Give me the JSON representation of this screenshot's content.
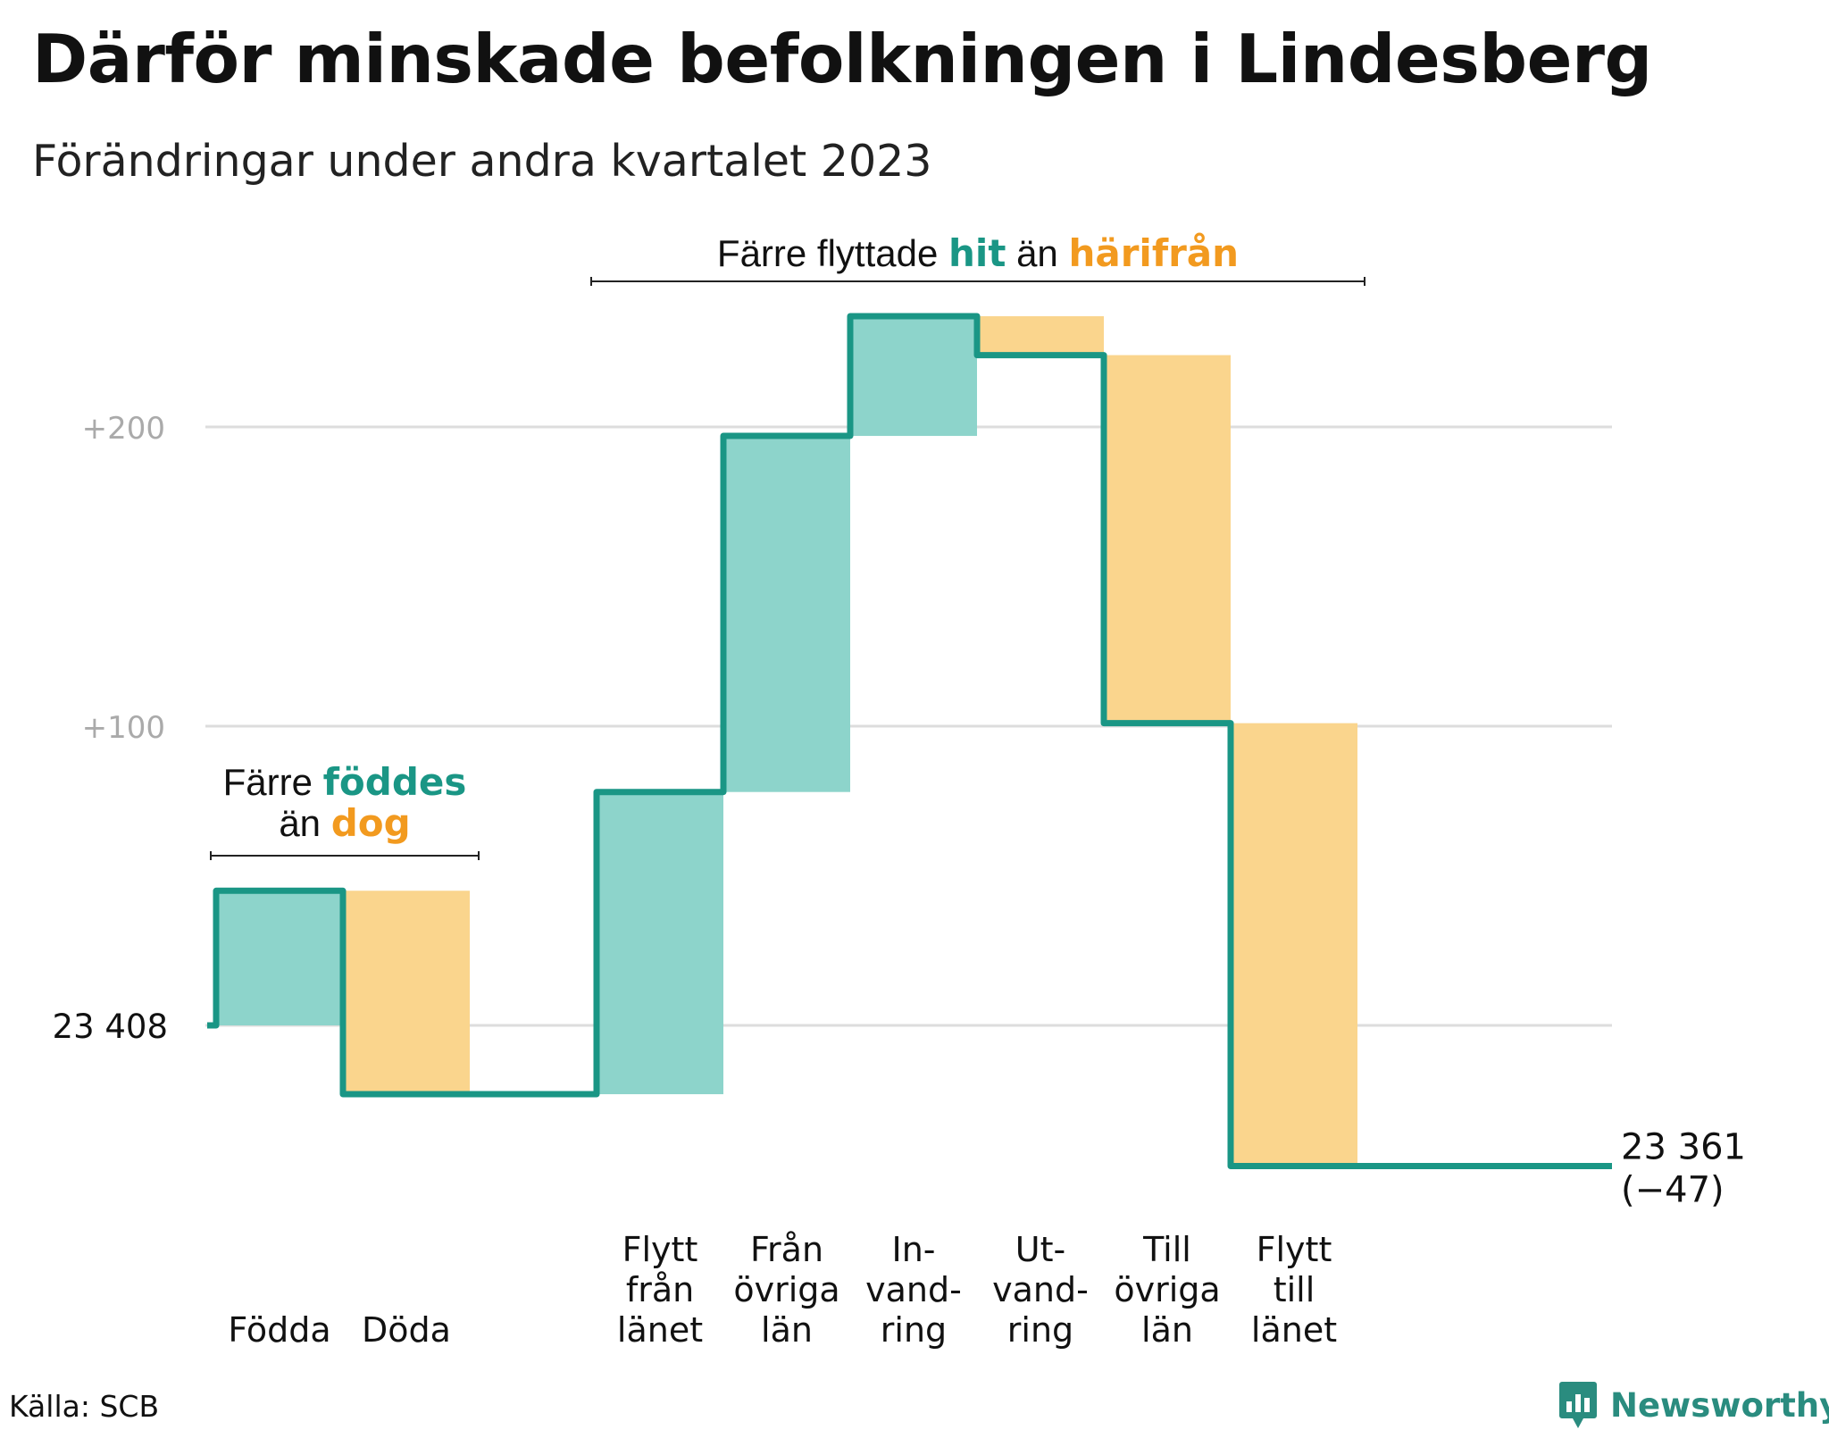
{
  "title": "Därför minskade befolkningen i Lindesberg",
  "subtitle": "Förändringar under andra kvartalet 2023",
  "source": "Källa: SCB",
  "brand": "Newsworthy",
  "colors": {
    "inflow": "#8dd4cb",
    "outflow": "#fad58d",
    "line": "#1a9685",
    "accent_green": "#1a9685",
    "accent_orange": "#f29a1f",
    "grid": "#dddddd",
    "tick_text": "#aaaaaa"
  },
  "annotations": {
    "births": {
      "l1_pre": "Färre",
      "l1_hi": "föddes",
      "l2_pre": "än",
      "l2_hi": "dog"
    },
    "moves": {
      "pre": "Färre flyttade",
      "hi1": "hit",
      "mid": "än",
      "hi2": "härifrån"
    }
  },
  "chart_data": {
    "type": "waterfall",
    "start_value": 23408,
    "start_label": "23  408",
    "end_value": 23361,
    "end_label": "23 361",
    "end_change_label": "(−47)",
    "yticks": [
      {
        "offset": 100,
        "label": "+100"
      },
      {
        "offset": 200,
        "label": "+200"
      }
    ],
    "ylim_offset": [
      -60,
      270
    ],
    "steps": [
      {
        "name": "Födda",
        "lines": [
          "Födda"
        ],
        "change": 45,
        "kind": "in"
      },
      {
        "name": "Döda",
        "lines": [
          "Döda"
        ],
        "change": -68,
        "kind": "out"
      },
      {
        "name": "",
        "lines": [],
        "change": 0,
        "kind": "gap"
      },
      {
        "name": "Flytt från länet",
        "lines": [
          "Flytt",
          "från",
          "länet"
        ],
        "change": 101,
        "kind": "in"
      },
      {
        "name": "Från övriga län",
        "lines": [
          "Från",
          "övriga",
          "län"
        ],
        "change": 119,
        "kind": "in"
      },
      {
        "name": "In-vandring",
        "lines": [
          "In-",
          "vand-",
          "ring"
        ],
        "change": 40,
        "kind": "in"
      },
      {
        "name": "Ut-vandring",
        "lines": [
          "Ut-",
          "vand-",
          "ring"
        ],
        "change": -13,
        "kind": "out"
      },
      {
        "name": "Till övriga län",
        "lines": [
          "Till",
          "övriga",
          "län"
        ],
        "change": -123,
        "kind": "out"
      },
      {
        "name": "Flytt till länet",
        "lines": [
          "Flytt",
          "till",
          "länet"
        ],
        "change": -148,
        "kind": "out"
      }
    ]
  }
}
